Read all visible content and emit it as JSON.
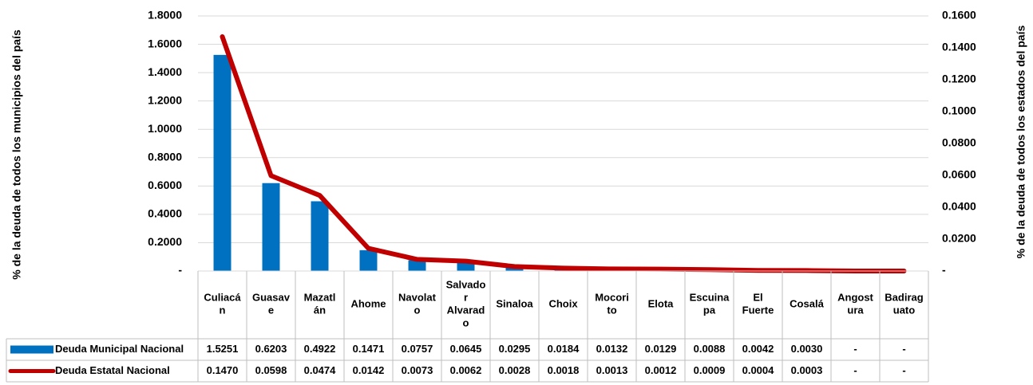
{
  "chart_data": {
    "type": "bar",
    "title": "",
    "categories": [
      "Culiacá\nn",
      "Guasav\ne",
      "Mazatl\nán",
      "Ahome",
      "Navolat\no",
      "Salvado\nr\nAlvarad\no",
      "Sinaloa",
      "Choix",
      "Mocori\nto",
      "Elota",
      "Escuina\npa",
      "El\nFuerte",
      "Cosalá",
      "Angost\nura",
      "Badirag\nuato"
    ],
    "ylabel_left": "% de la deuda  de todos los municipios del país",
    "ylabel_right": "% de la deuda de todos los estados del país",
    "y_left": {
      "min": 0,
      "max": 1.8,
      "ticks": [
        "-",
        "0.2000",
        "0.4000",
        "0.6000",
        "0.8000",
        "1.0000",
        "1.2000",
        "1.4000",
        "1.6000",
        "1.8000"
      ]
    },
    "y_right": {
      "min": 0,
      "max": 0.16,
      "ticks": [
        "-",
        "0.0200",
        "0.0400",
        "0.0600",
        "0.0800",
        "0.1000",
        "0.1200",
        "0.1400",
        "0.1600"
      ]
    },
    "grid": true,
    "series": [
      {
        "name": "Deuda Municipal Nacional",
        "kind": "bar",
        "axis": "left",
        "color": "#0070C0",
        "values": [
          1.5251,
          0.6203,
          0.4922,
          0.1471,
          0.0757,
          0.0645,
          0.0295,
          0.0184,
          0.0132,
          0.0129,
          0.0088,
          0.0042,
          0.003,
          0,
          0
        ],
        "labels": [
          "1.5251",
          "0.6203",
          "0.4922",
          "0.1471",
          "0.0757",
          "0.0645",
          "0.0295",
          "0.0184",
          "0.0132",
          "0.0129",
          "0.0088",
          "0.0042",
          "0.0030",
          "-",
          "-"
        ]
      },
      {
        "name": "Deuda Estatal Nacional",
        "kind": "line",
        "axis": "right",
        "color": "#C00000",
        "values": [
          0.147,
          0.0598,
          0.0474,
          0.0142,
          0.0073,
          0.0062,
          0.0028,
          0.0018,
          0.0013,
          0.0012,
          0.0009,
          0.0004,
          0.0003,
          0,
          0
        ],
        "labels": [
          "0.1470",
          "0.0598",
          "0.0474",
          "0.0142",
          "0.0073",
          "0.0062",
          "0.0028",
          "0.0018",
          "0.0013",
          "0.0012",
          "0.0009",
          "0.0004",
          "0.0003",
          "-",
          "-"
        ]
      }
    ]
  }
}
